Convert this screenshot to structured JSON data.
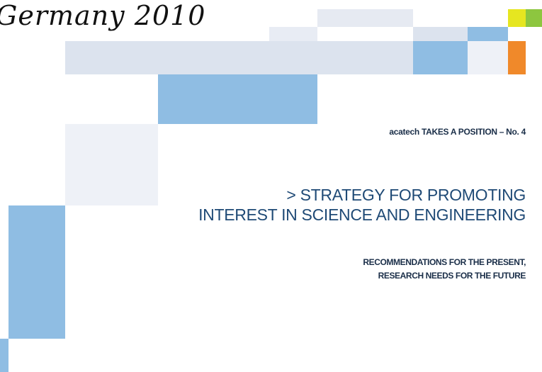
{
  "header": {
    "title": "Germany 2010"
  },
  "cover": {
    "series": "acatech TAKES A POSITION – No. 4",
    "title_lines": [
      "> STRATEGY FOR PROMOTING",
      "INTEREST IN SCIENCE AND ENGINEERING"
    ],
    "subtitle_lines": [
      "RECOMMENDATIONS FOR THE PRESENT,",
      "RESEARCH NEEDS FOR THE FUTURE"
    ]
  }
}
